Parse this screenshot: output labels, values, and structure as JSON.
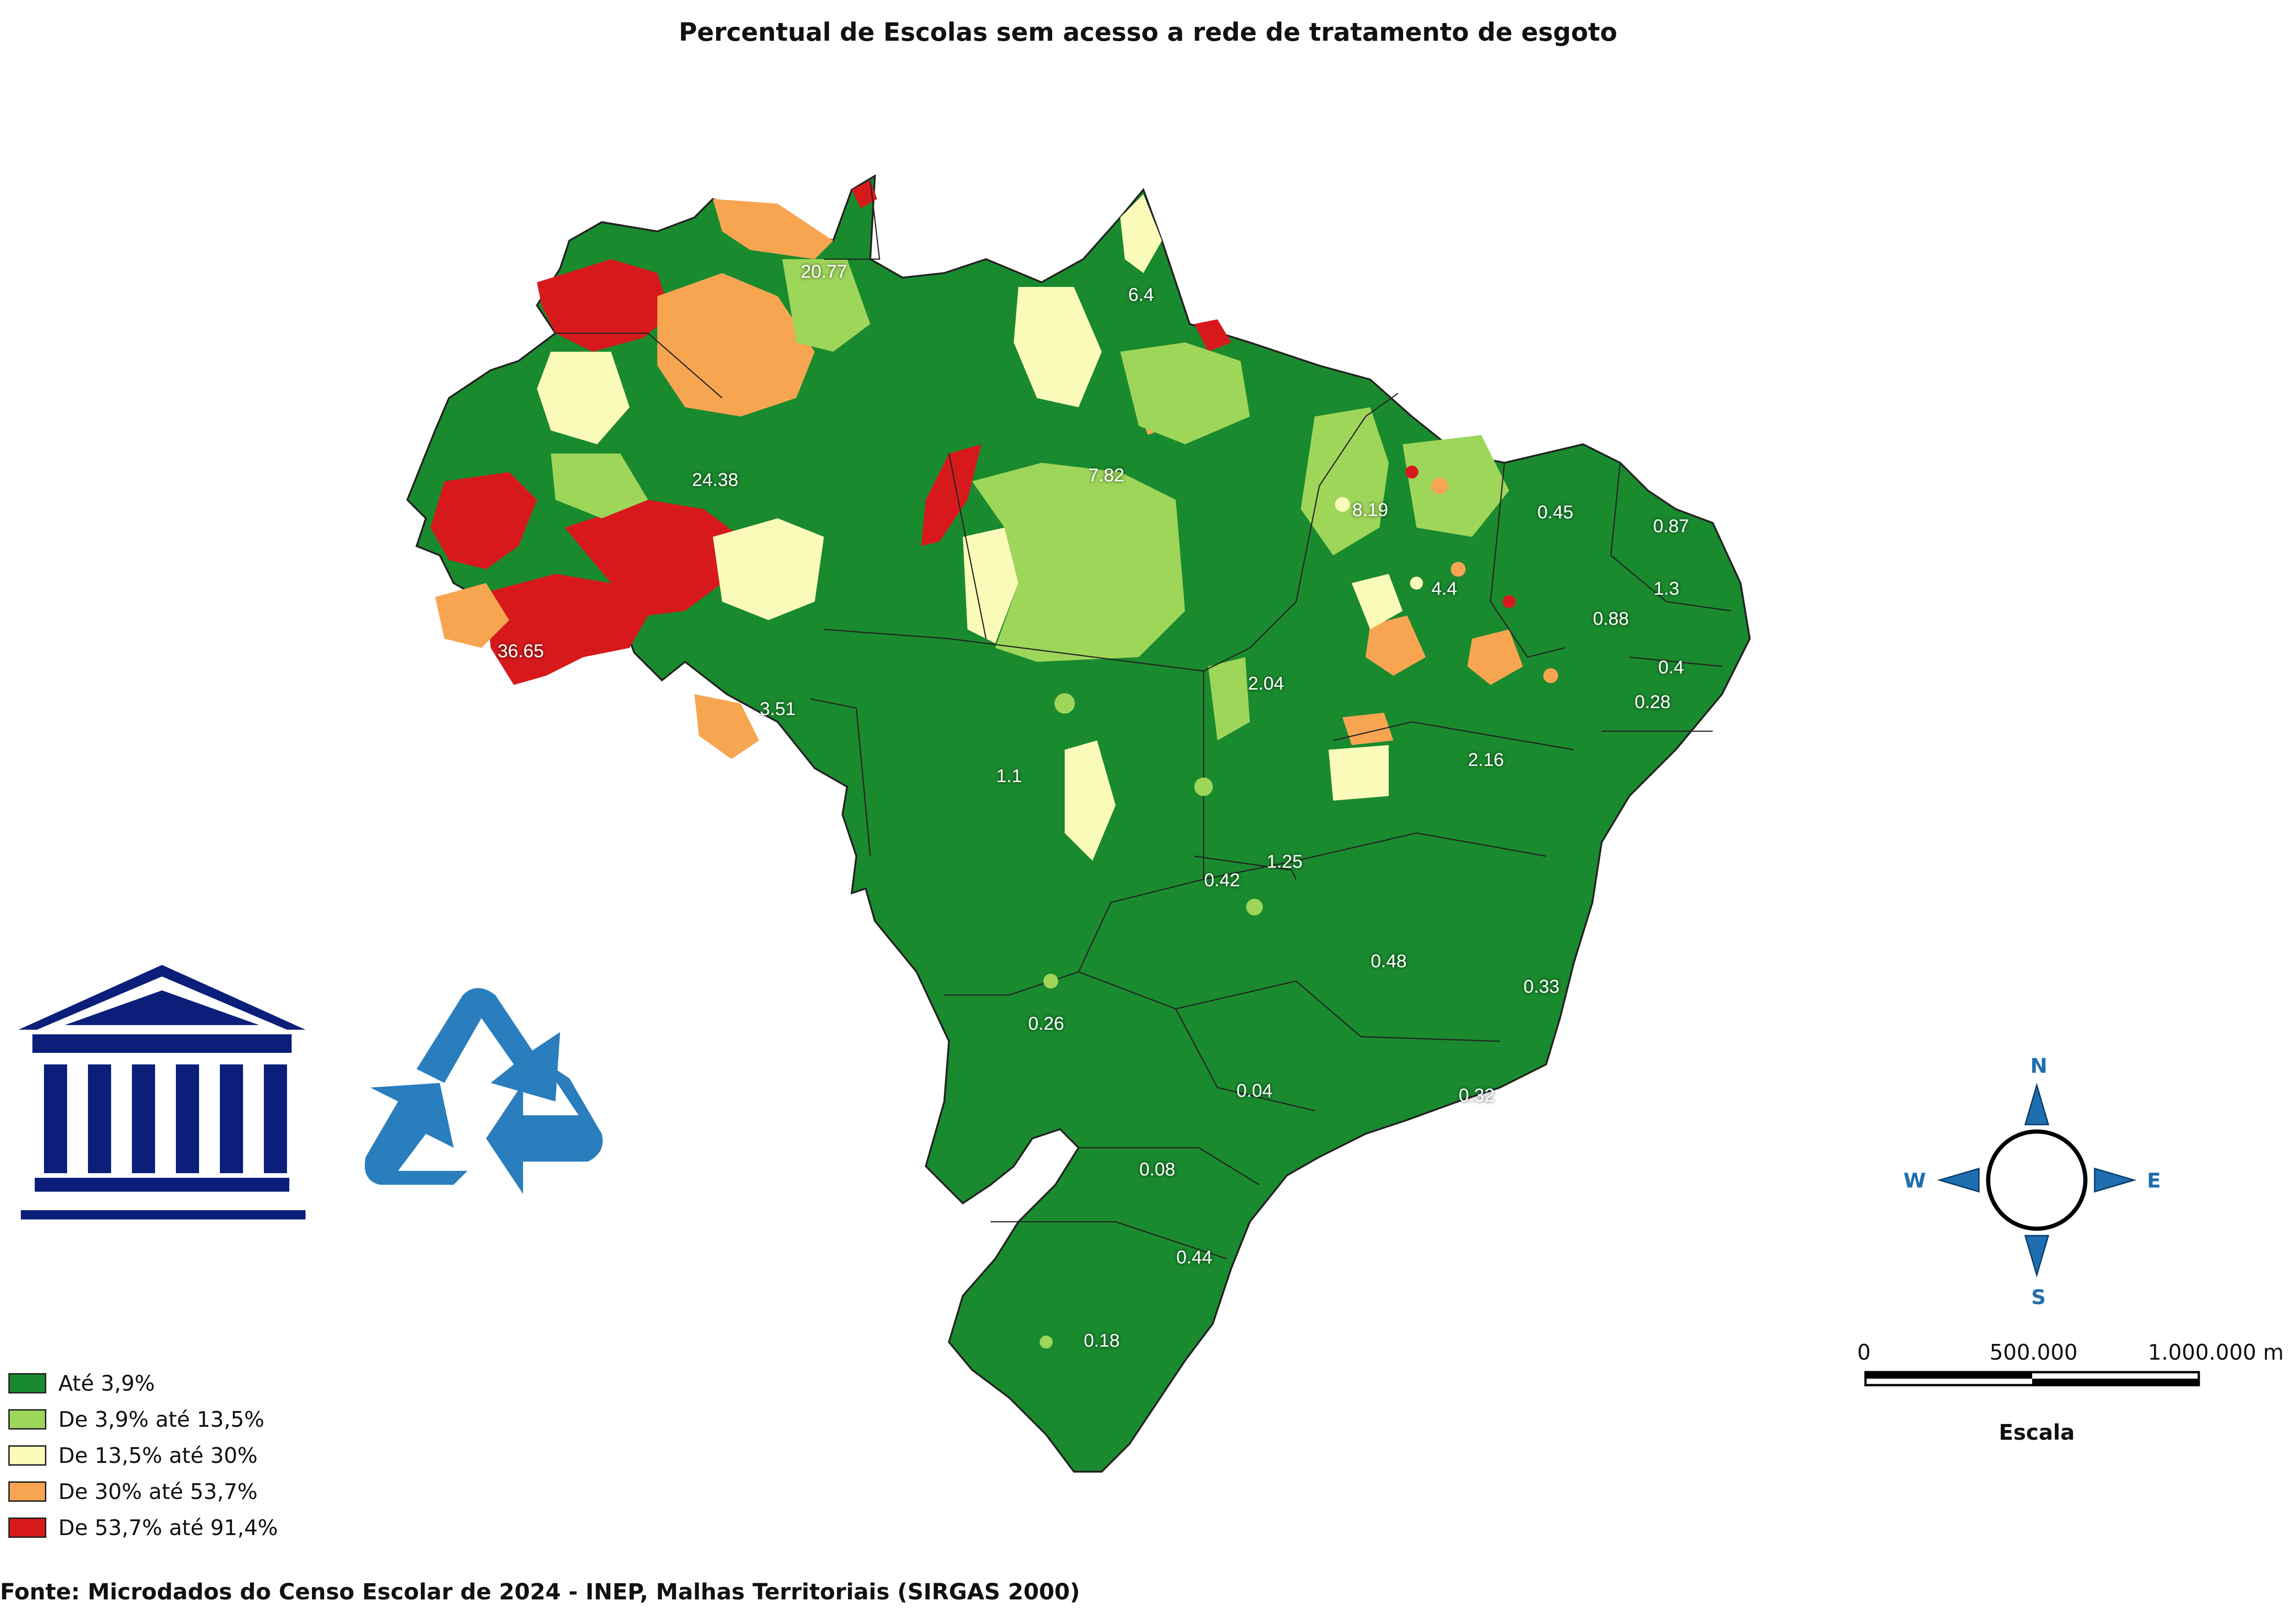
{
  "title": "Percentual de Escolas sem acesso a rede de tratamento de esgoto",
  "legend": [
    {
      "label": "Até 3,9%",
      "color": "#1a8a2e"
    },
    {
      "label": "De 3,9% até 13,5%",
      "color": "#9ed65a"
    },
    {
      "label": "De 13,5% até 30%",
      "color": "#fbfbb9"
    },
    {
      "label": "De 30% até 53,7%",
      "color": "#f8a552"
    },
    {
      "label": "De 53,7% até 91,4%",
      "color": "#d7191c"
    }
  ],
  "state_values": [
    "20.77",
    "6.4",
    "24.38",
    "7.82",
    "8.19",
    "0.45",
    "0.87",
    "4.4",
    "1.3",
    "0.88",
    "36.65",
    "2.04",
    "0.4",
    "3.51",
    "0.28",
    "2.16",
    "1.1",
    "1.25",
    "0.42",
    "0.48",
    "0.33",
    "0.26",
    "0.04",
    "0.32",
    "0.08",
    "0.44",
    "0.18"
  ],
  "compass": {
    "n": "N",
    "s": "S",
    "e": "E",
    "w": "W",
    "color": "#1f6fb0"
  },
  "scale": {
    "zero": "0",
    "mid": "500.000",
    "end": "1.000.000 m",
    "title": "Escala"
  },
  "source": "Fonte: Microdados do Censo Escolar de 2024 - INEP, Malhas Territoriais (SIRGAS 2000)",
  "icons": [
    "institution-icon",
    "recycle-icon"
  ]
}
